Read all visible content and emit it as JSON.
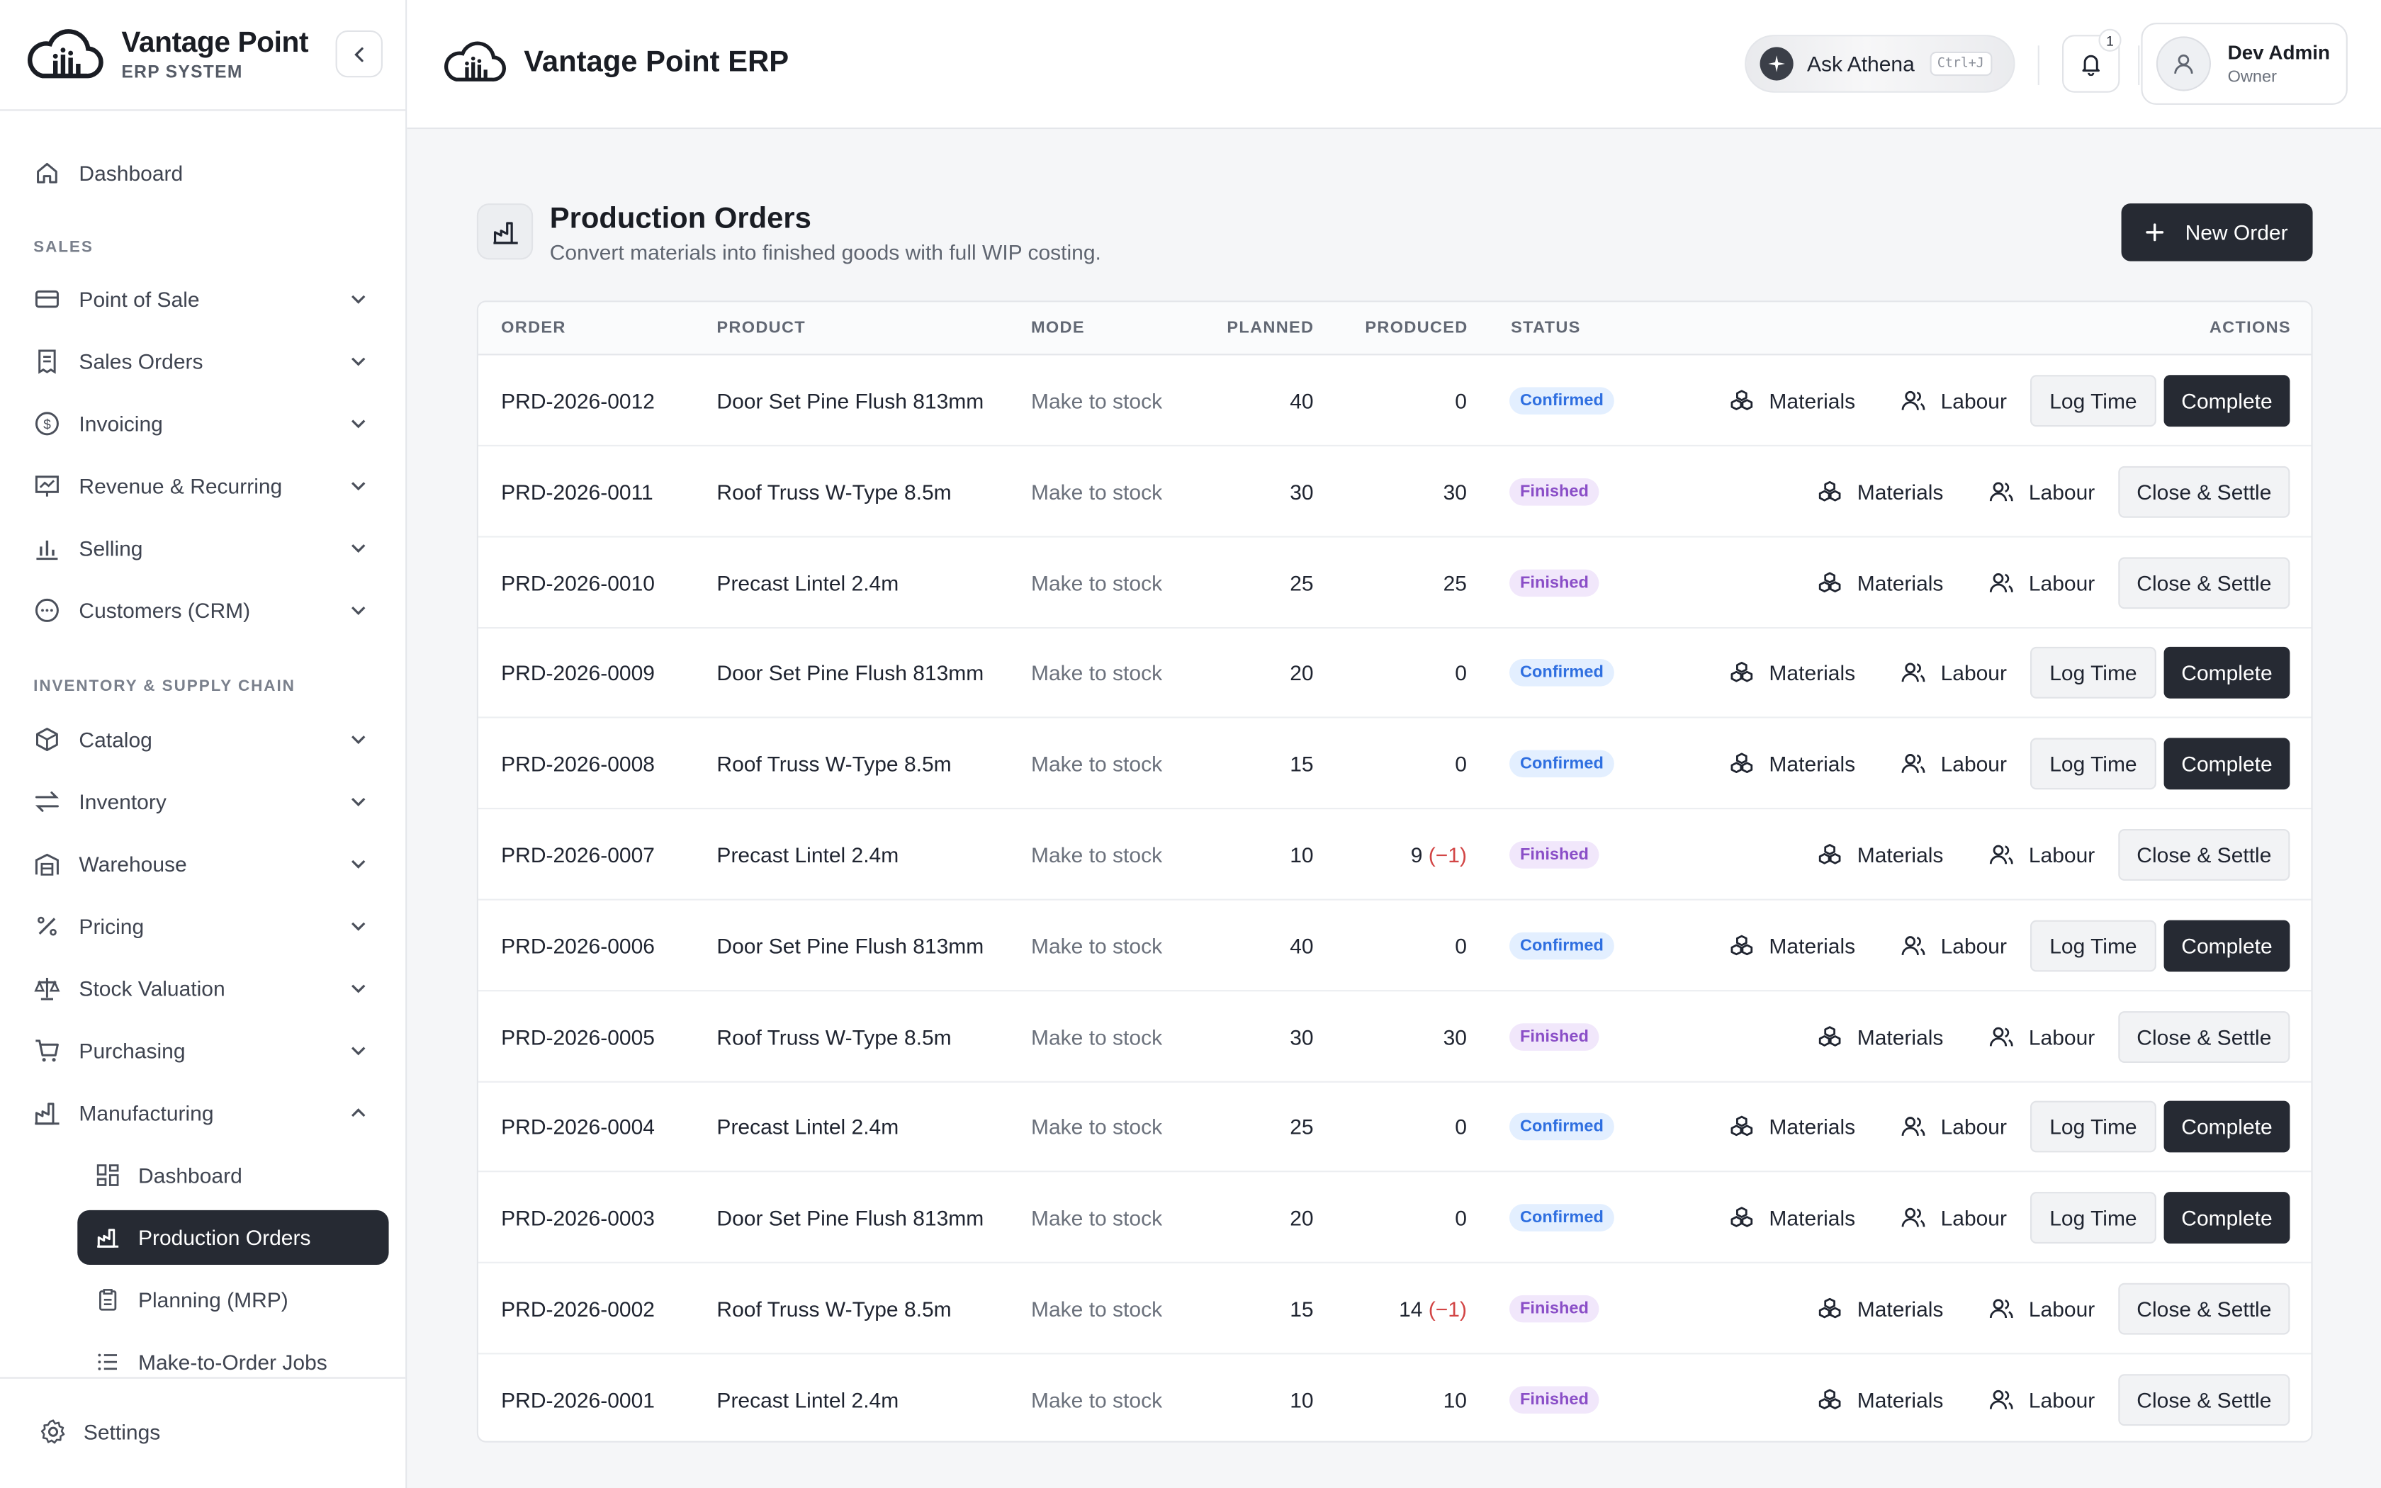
{
  "brand": {
    "name": "Vantage Point",
    "subtitle": "ERP SYSTEM"
  },
  "sidebar": {
    "dashboard": "Dashboard",
    "sections": {
      "sales": "SALES",
      "inventory": "INVENTORY & SUPPLY CHAIN"
    },
    "items": [
      {
        "label": "Point of Sale"
      },
      {
        "label": "Sales Orders"
      },
      {
        "label": "Invoicing"
      },
      {
        "label": "Revenue & Recurring"
      },
      {
        "label": "Selling"
      },
      {
        "label": "Customers (CRM)"
      },
      {
        "label": "Catalog"
      },
      {
        "label": "Inventory"
      },
      {
        "label": "Warehouse"
      },
      {
        "label": "Pricing"
      },
      {
        "label": "Stock Valuation"
      },
      {
        "label": "Purchasing"
      },
      {
        "label": "Manufacturing"
      }
    ],
    "manufacturing_sub": [
      {
        "label": "Dashboard"
      },
      {
        "label": "Production Orders"
      },
      {
        "label": "Planning (MRP)"
      },
      {
        "label": "Make-to-Order Jobs"
      }
    ],
    "settings": "Settings"
  },
  "header": {
    "app_title": "Vantage Point ERP",
    "ask_label": "Ask Athena",
    "ask_shortcut": "Ctrl+J",
    "notifications_count": "1",
    "user_name": "Dev Admin",
    "user_role": "Owner"
  },
  "page": {
    "title": "Production Orders",
    "subtitle": "Convert materials into finished goods with full WIP costing.",
    "new_button": "New Order"
  },
  "table": {
    "columns": {
      "order": "ORDER",
      "product": "PRODUCT",
      "mode": "MODE",
      "planned": "PLANNED",
      "produced": "PRODUCED",
      "status": "STATUS",
      "actions": "ACTIONS"
    },
    "action_labels": {
      "materials": "Materials",
      "labour": "Labour",
      "log_time": "Log Time",
      "complete": "Complete",
      "close_settle": "Close & Settle"
    },
    "rows": [
      {
        "order": "PRD-2026-0012",
        "product": "Door Set Pine Flush 813mm",
        "mode": "Make to stock",
        "planned": "40",
        "produced": "0",
        "variance": "",
        "status": "Confirmed"
      },
      {
        "order": "PRD-2026-0011",
        "product": "Roof Truss W-Type 8.5m",
        "mode": "Make to stock",
        "planned": "30",
        "produced": "30",
        "variance": "",
        "status": "Finished"
      },
      {
        "order": "PRD-2026-0010",
        "product": "Precast Lintel 2.4m",
        "mode": "Make to stock",
        "planned": "25",
        "produced": "25",
        "variance": "",
        "status": "Finished"
      },
      {
        "order": "PRD-2026-0009",
        "product": "Door Set Pine Flush 813mm",
        "mode": "Make to stock",
        "planned": "20",
        "produced": "0",
        "variance": "",
        "status": "Confirmed"
      },
      {
        "order": "PRD-2026-0008",
        "product": "Roof Truss W-Type 8.5m",
        "mode": "Make to stock",
        "planned": "15",
        "produced": "0",
        "variance": "",
        "status": "Confirmed"
      },
      {
        "order": "PRD-2026-0007",
        "product": "Precast Lintel 2.4m",
        "mode": "Make to stock",
        "planned": "10",
        "produced": "9",
        "variance": "(−1)",
        "status": "Finished"
      },
      {
        "order": "PRD-2026-0006",
        "product": "Door Set Pine Flush 813mm",
        "mode": "Make to stock",
        "planned": "40",
        "produced": "0",
        "variance": "",
        "status": "Confirmed"
      },
      {
        "order": "PRD-2026-0005",
        "product": "Roof Truss W-Type 8.5m",
        "mode": "Make to stock",
        "planned": "30",
        "produced": "30",
        "variance": "",
        "status": "Finished"
      },
      {
        "order": "PRD-2026-0004",
        "product": "Precast Lintel 2.4m",
        "mode": "Make to stock",
        "planned": "25",
        "produced": "0",
        "variance": "",
        "status": "Confirmed"
      },
      {
        "order": "PRD-2026-0003",
        "product": "Door Set Pine Flush 813mm",
        "mode": "Make to stock",
        "planned": "20",
        "produced": "0",
        "variance": "",
        "status": "Confirmed"
      },
      {
        "order": "PRD-2026-0002",
        "product": "Roof Truss W-Type 8.5m",
        "mode": "Make to stock",
        "planned": "15",
        "produced": "14",
        "variance": "(−1)",
        "status": "Finished"
      },
      {
        "order": "PRD-2026-0001",
        "product": "Precast Lintel 2.4m",
        "mode": "Make to stock",
        "planned": "10",
        "produced": "10",
        "variance": "",
        "status": "Finished"
      }
    ]
  },
  "colors": {
    "accent_dark": "#262a33",
    "confirmed": "#2f6fe0",
    "finished": "#8a4ec7",
    "variance": "#d24545"
  }
}
